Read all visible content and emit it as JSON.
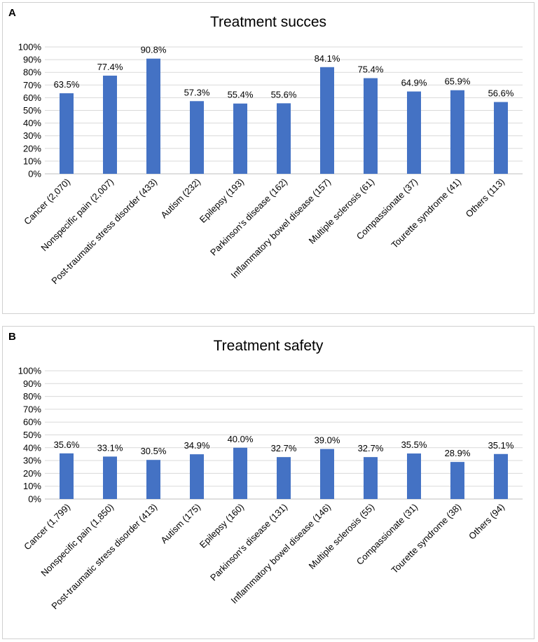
{
  "chart_data": [
    {
      "panel": "A",
      "type": "bar",
      "title": "Treatment succes",
      "categories": [
        "Cancer (2,070)",
        "Nonspecific pain (2,007)",
        "Post-traumatic stress disorder (433)",
        "Autism (232)",
        "Epilepsy (193)",
        "Parkinson's disease (162)",
        "Inflammatory bowel disease (157)",
        "Multiple sclerosis (61)",
        "Compassionate (37)",
        "Tourette syndrome (41)",
        "Others (113)"
      ],
      "values": [
        63.5,
        77.4,
        90.8,
        57.3,
        55.4,
        55.6,
        84.1,
        75.4,
        64.9,
        65.9,
        56.6
      ],
      "labels": [
        "63.5%",
        "77.4%",
        "90.8%",
        "57.3%",
        "55.4%",
        "55.6%",
        "84.1%",
        "75.4%",
        "64.9%",
        "65.9%",
        "56.6%"
      ],
      "ylim": [
        0,
        100
      ],
      "yticks": [
        "0%",
        "10%",
        "20%",
        "30%",
        "40%",
        "50%",
        "60%",
        "70%",
        "80%",
        "90%",
        "100%"
      ],
      "xlabel": "",
      "ylabel": "",
      "grid": true,
      "bar_color": "#4472C4"
    },
    {
      "panel": "B",
      "type": "bar",
      "title": "Treatment safety",
      "categories": [
        "Cancer (1,799)",
        "Nonspecific pain (1,850)",
        "Post-traumatic stress disorder (413)",
        "Autism (175)",
        "Epilepsy (160)",
        "Parkinson's disease (131)",
        "Inflammatory bowel disease (146)",
        "Multiple sclerosis (55)",
        "Compassionate (31)",
        "Tourette syndrome (38)",
        "Others (94)"
      ],
      "values": [
        35.6,
        33.1,
        30.5,
        34.9,
        40.0,
        32.7,
        39.0,
        32.7,
        35.5,
        28.9,
        35.1
      ],
      "labels": [
        "35.6%",
        "33.1%",
        "30.5%",
        "34.9%",
        "40.0%",
        "32.7%",
        "39.0%",
        "32.7%",
        "35.5%",
        "28.9%",
        "35.1%"
      ],
      "ylim": [
        0,
        100
      ],
      "yticks": [
        "0%",
        "10%",
        "20%",
        "30%",
        "40%",
        "50%",
        "60%",
        "70%",
        "80%",
        "90%",
        "100%"
      ],
      "xlabel": "",
      "ylabel": "",
      "grid": true,
      "bar_color": "#4472C4"
    }
  ]
}
